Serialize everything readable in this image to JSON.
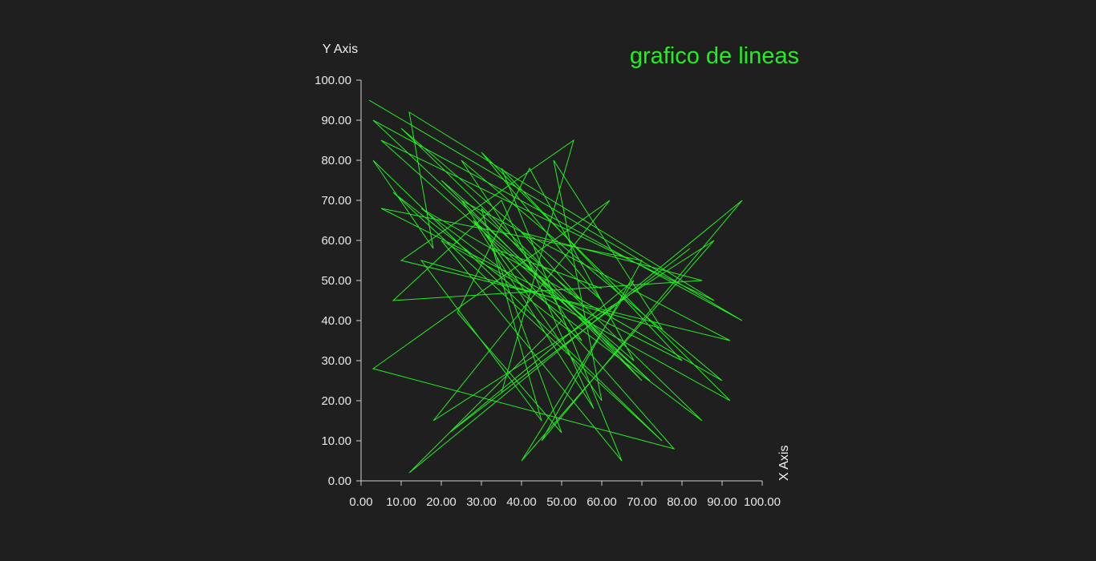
{
  "chart_data": {
    "type": "line",
    "title": "grafico de lineas",
    "xlabel": "X Axis",
    "ylabel": "Y Axis",
    "xlim": [
      0,
      100
    ],
    "ylim": [
      0,
      100
    ],
    "x_ticks": [
      "0.00",
      "10.00",
      "20.00",
      "30.00",
      "40.00",
      "50.00",
      "60.00",
      "70.00",
      "80.00",
      "90.00",
      "100.00"
    ],
    "y_ticks": [
      "0.00",
      "10.00",
      "20.00",
      "30.00",
      "40.00",
      "50.00",
      "60.00",
      "70.00",
      "80.00",
      "90.00",
      "100.00"
    ],
    "grid": false,
    "legend": "none",
    "line_color": "#22ee22",
    "title_color": "#22ee22",
    "series": [
      {
        "x": [
          2,
          95,
          3,
          72,
          5,
          88,
          12,
          18,
          3,
          75,
          8,
          55,
          25,
          90,
          15,
          85,
          10,
          60,
          30,
          92,
          20,
          65,
          35,
          80,
          5,
          70,
          45,
          95,
          12,
          50,
          28,
          78,
          3,
          62,
          18,
          88,
          40,
          68,
          22,
          82,
          35,
          53,
          10,
          92,
          25,
          60,
          48,
          75,
          15,
          45,
          30,
          70,
          20,
          55,
          40,
          85,
          8,
          35,
          58,
          28,
          68,
          42,
          24,
          50,
          33,
          60
        ],
        "y": [
          95,
          40,
          90,
          25,
          85,
          45,
          92,
          58,
          80,
          10,
          72,
          35,
          80,
          25,
          68,
          15,
          88,
          45,
          82,
          20,
          60,
          5,
          78,
          30,
          68,
          55,
          10,
          70,
          2,
          40,
          65,
          8,
          28,
          70,
          15,
          60,
          5,
          50,
          12,
          58,
          22,
          85,
          55,
          35,
          70,
          20,
          80,
          38,
          55,
          15,
          68,
          25,
          75,
          45,
          62,
          50,
          45,
          70,
          18,
          65,
          30,
          78,
          42,
          12,
          58,
          48
        ]
      }
    ]
  }
}
